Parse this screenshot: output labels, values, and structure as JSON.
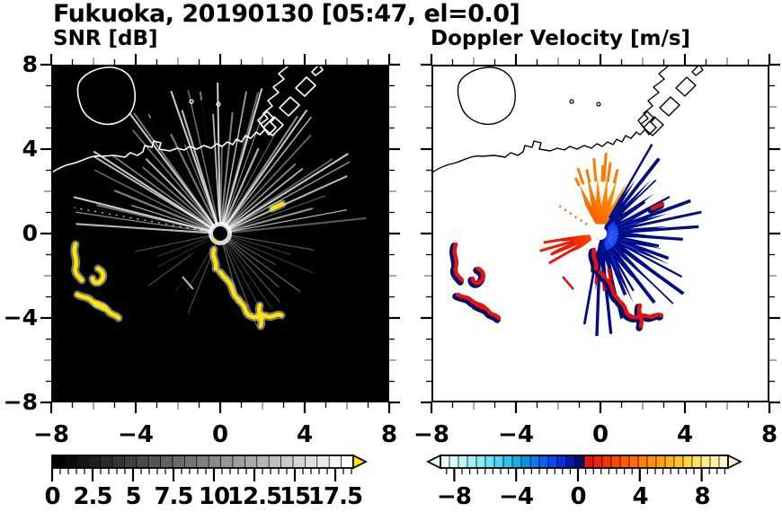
{
  "header": {
    "title": "Fukuoka, 20190130 [05:47, el=0.0]"
  },
  "panels": {
    "snr": {
      "title": "SNR [dB]",
      "x_tick_labels": [
        "−8",
        "−4",
        "0",
        "4",
        "8"
      ],
      "y_tick_labels": [
        "8",
        "4",
        "0",
        "−4",
        "−8"
      ]
    },
    "velocity": {
      "title": "Doppler Velocity [m/s]",
      "x_tick_labels": [
        "−8",
        "−4",
        "0",
        "4",
        "8"
      ]
    }
  },
  "colorbars": {
    "snr": {
      "labels": [
        "0",
        "2.5",
        "5",
        "7.5",
        "10",
        "12.5",
        "15",
        "17.5"
      ],
      "segments": [
        "#000000",
        "#0b0b0b",
        "#151515",
        "#202020",
        "#2b2b2b",
        "#353535",
        "#404040",
        "#4a4a4a",
        "#555555",
        "#606060",
        "#6a6a6a",
        "#757575",
        "#808080",
        "#8a8a8a",
        "#959595",
        "#9f9f9f",
        "#aaaaaa",
        "#b5b5b5",
        "#bfbfbf",
        "#cacaca",
        "#d5d5d5",
        "#dfdfdf",
        "#eaeaea",
        "#f4f4f4",
        "#ffffff"
      ],
      "over_arrow_color": "#ffe400",
      "outline_color": "#000000"
    },
    "velocity": {
      "labels": [
        "−8",
        "−4",
        "0",
        "4",
        "8"
      ],
      "segments": [
        "#eaffff",
        "#d6fcfe",
        "#c0f8fc",
        "#a8f1fa",
        "#8ce9f8",
        "#6edff5",
        "#50d2f0",
        "#32c2ea",
        "#16aee2",
        "#0496da",
        "#0a7ae6",
        "#0f5ef0",
        "#1244f2",
        "#0c2cd8",
        "#0618a8",
        "#020a6e",
        "#e81410",
        "#ee250c",
        "#f43608",
        "#fa4804",
        "#ff5a00",
        "#ff6c00",
        "#ff7e00",
        "#ff9000",
        "#ffa200",
        "#ffb40e",
        "#ffc526",
        "#ffd544",
        "#ffe266",
        "#ffec8a",
        "#fff4aa",
        "#fff9c6"
      ],
      "under_arrow_color": "#f4ffff",
      "over_arrow_color": "#fffcda",
      "outline_color": "#000000"
    }
  },
  "palette": {
    "snr_background": "#000000",
    "velocity_background": "#ffffff",
    "strong_echo_yellow": "#ffe400",
    "coast_snr": "#ffffff",
    "coast_velocity": "#000000",
    "doppler_negative_navy": "#000e8c",
    "doppler_negative_blue": "#1943f0",
    "doppler_positive_red": "#e81410",
    "doppler_positive_orange": "#ff8c00"
  },
  "chart_data": [
    {
      "type": "heatmap",
      "title": "SNR [dB]",
      "site": "Fukuoka",
      "date": "20190130",
      "time": "05:47",
      "elevation_deg": 0.0,
      "xlim": [
        -8,
        8
      ],
      "ylim": [
        -8,
        8
      ],
      "x_ticks": [
        -8,
        -4,
        0,
        4,
        8
      ],
      "y_ticks": [
        -8,
        -4,
        0,
        4,
        8
      ],
      "grid": false,
      "colorbar": {
        "min": 0,
        "max": 18.75,
        "tick_values": [
          0,
          2.5,
          5,
          7.5,
          10,
          12.5,
          15,
          17.5
        ],
        "colormap": "black-to-white grayscale, yellow over-range arrow"
      },
      "background_value": "near 0 dB (black)",
      "features": [
        {
          "name": "radar-site",
          "x_km": 0,
          "y_km": 0
        },
        {
          "name": "radial-clutter-streaks",
          "description": "gray radial spokes from origin, densest NW through NE, faint SE and SW",
          "max_radius_km": 6
        },
        {
          "name": "shadow-wedges",
          "description": "two narrow black blocked sectors toward SSW"
        },
        {
          "name": "strong-echo-chain",
          "value": ">17.5 dB (yellow)",
          "path_km": [
            [
              -0.3,
              -0.8
            ],
            [
              0.3,
              -2.2
            ],
            [
              0.8,
              -3.0
            ],
            [
              1.6,
              -3.6
            ],
            [
              2.4,
              -3.9
            ],
            [
              3.0,
              -3.8
            ]
          ]
        },
        {
          "name": "west-strong-echoes",
          "value": ">17.5 dB (yellow)",
          "locations_km": [
            [
              -6.9,
              -0.7
            ],
            [
              -6.6,
              -2.0
            ],
            [
              -5.7,
              -1.9
            ],
            [
              -6.7,
              -3.0
            ],
            [
              -5.6,
              -3.7
            ]
          ]
        },
        {
          "name": "small-echo-northeast",
          "x_km": 2.5,
          "y_km": 1.3
        },
        {
          "name": "coastline",
          "description": "Hakata Bay shoreline: island NW, mainland across top, angular port piers NNE"
        }
      ]
    },
    {
      "type": "heatmap",
      "title": "Doppler Velocity [m/s]",
      "site": "Fukuoka",
      "date": "20190130",
      "time": "05:47",
      "elevation_deg": 0.0,
      "xlim": [
        -8,
        8
      ],
      "ylim": [
        -8,
        8
      ],
      "x_ticks": [
        -8,
        -4,
        0,
        4,
        8
      ],
      "y_ticks": [
        -8,
        -4,
        0,
        4,
        8
      ],
      "grid": false,
      "colorbar": {
        "min": -9,
        "max": 9.7,
        "tick_values": [
          -8,
          -4,
          0,
          4,
          8
        ],
        "colormap": "pale cyan → blue → dark navy (negative) | red → orange → yellow → cream (positive), arrows both ends"
      },
      "features": [
        {
          "name": "positive-velocity-fan",
          "description": "orange wedge N-NW of radar, +2 to +8 m/s",
          "sector_deg": [
            58,
            118
          ],
          "radius_km": 2.8
        },
        {
          "name": "positive-velocity-wedge-west",
          "description": "red wedge toward W, +6 to +9 m/s",
          "sector_deg": [
            186,
            216
          ],
          "radius_km": 2.3
        },
        {
          "name": "negative-velocity-lobe",
          "description": "spiky navy/royal-blue lobe E to SSE of radar, -2 to -9 m/s",
          "radius_km": 3.8
        },
        {
          "name": "clutter-chain",
          "description": "red blobs with navy fringes along same arc as SNR yellow chain"
        },
        {
          "name": "west-echoes",
          "description": "red blobs with navy edges matching SNR western yellow echoes"
        },
        {
          "name": "coastline",
          "description": "same Hakata Bay shoreline drawn in black on white"
        }
      ]
    }
  ]
}
